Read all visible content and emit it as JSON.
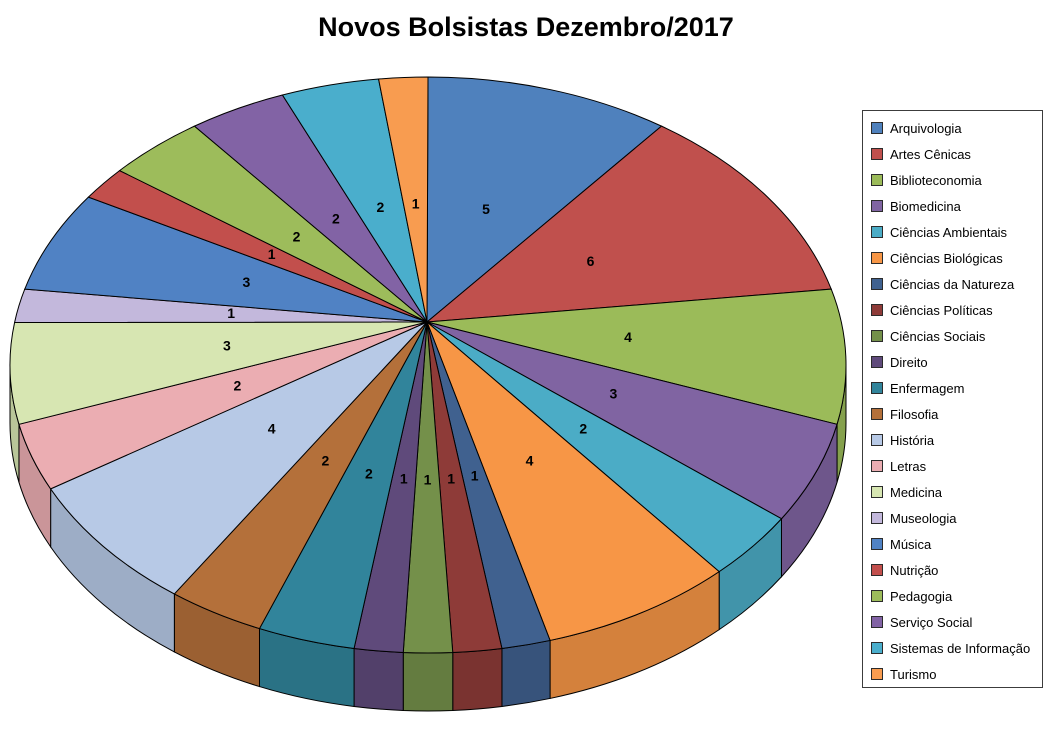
{
  "title": "Novos Bolsistas Dezembro/2017",
  "chart_data": {
    "type": "pie",
    "style": "3d-pie",
    "title": "Novos Bolsistas Dezembro/2017",
    "legend_position": "right",
    "data_labels": "value",
    "start_angle_deg": 0,
    "direction": "clockwise",
    "total": 53,
    "categories": [
      "Arquivologia",
      "Artes Cênicas",
      "Biblioteconomia",
      "Biomedicina",
      "Ciências Ambientais",
      "Ciências Biológicas",
      "Ciências da Natureza",
      "Ciências Políticas",
      "Ciências Sociais",
      "Direito",
      "Enfermagem",
      "Filosofia",
      "História",
      "Letras",
      "Medicina",
      "Museologia",
      "Música",
      "Nutrição",
      "Pedagogia",
      "Serviço Social",
      "Sistemas de Informação",
      "Turismo"
    ],
    "values": [
      5,
      6,
      4,
      3,
      2,
      4,
      1,
      1,
      1,
      1,
      2,
      2,
      4,
      2,
      3,
      1,
      3,
      1,
      2,
      2,
      2,
      1
    ],
    "colors": [
      "#4F81BD",
      "#C0504D",
      "#9BBB59",
      "#8064A2",
      "#4BACC6",
      "#F79646",
      "#40618F",
      "#8E3B38",
      "#74904A",
      "#5F4A7B",
      "#31849B",
      "#B4703A",
      "#B7C9E6",
      "#EBADB2",
      "#D7E6B2",
      "#C3B8DC",
      "#5082C4",
      "#C24F4C",
      "#9DBC5B",
      "#8263A5",
      "#4AAECC",
      "#F89C50"
    ]
  }
}
